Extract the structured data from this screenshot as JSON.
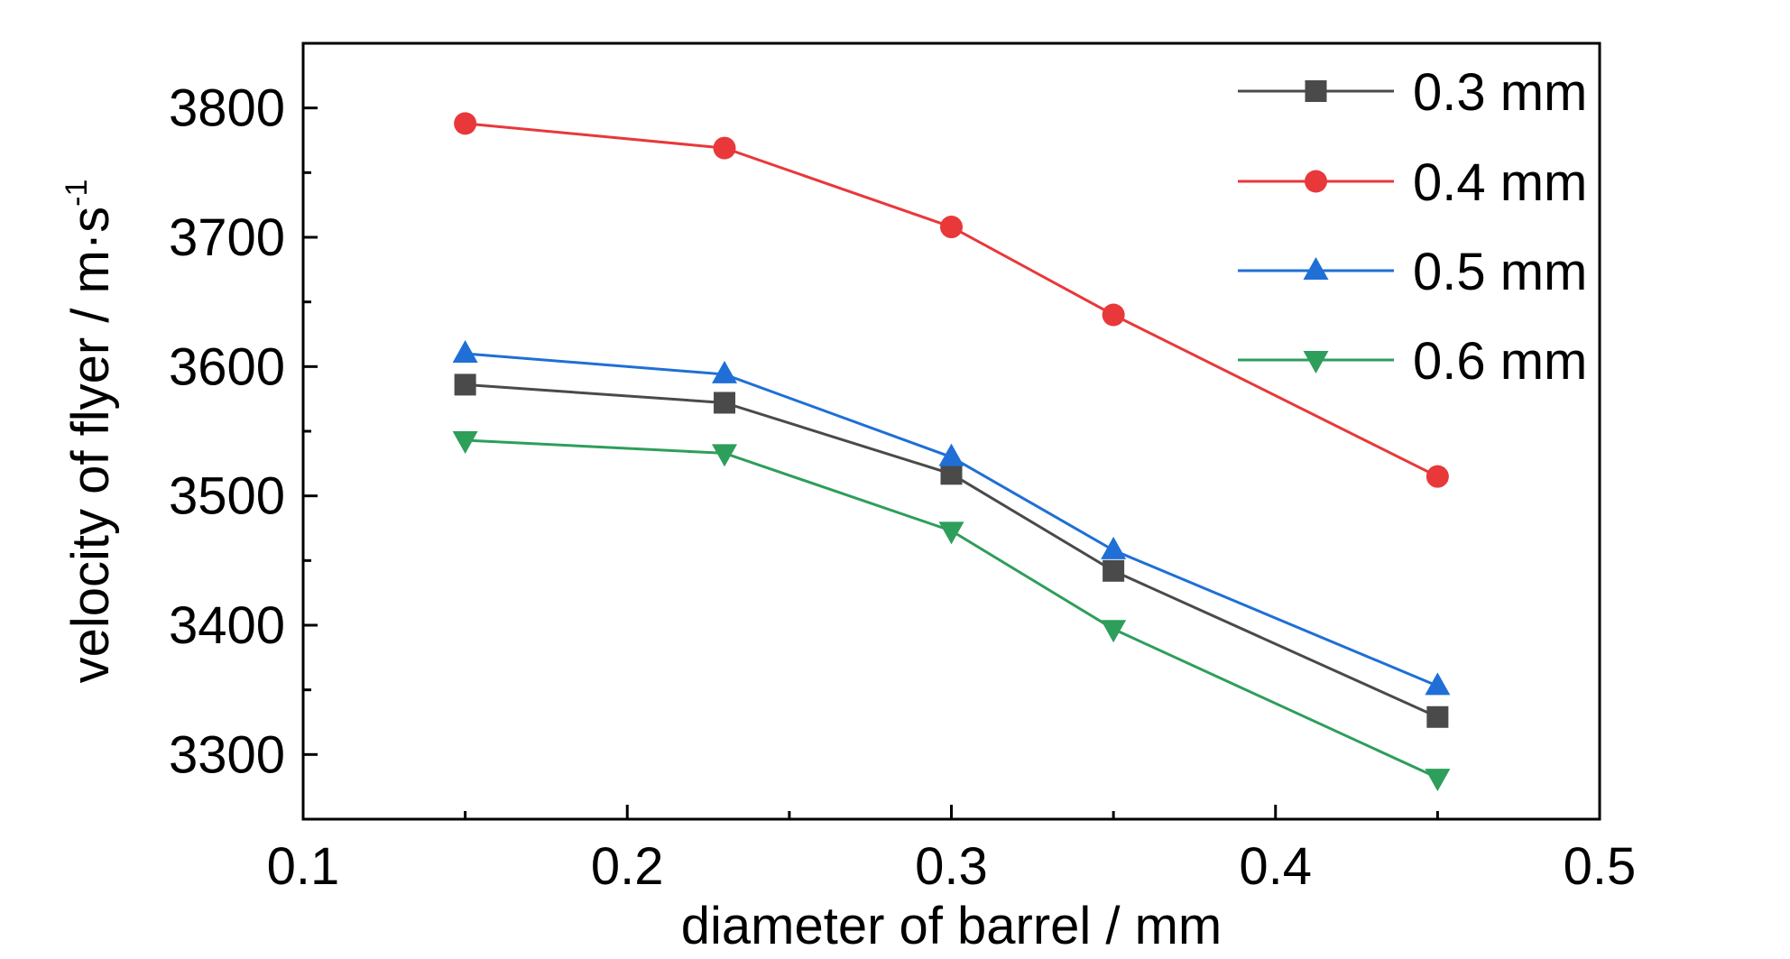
{
  "chart_data": {
    "type": "line",
    "xlabel": "diameter of barrel / mm",
    "ylabel": "velocity of flyer / m·s",
    "ylabel_superscript": "-1",
    "xlim": [
      0.1,
      0.5
    ],
    "ylim": [
      3250,
      3850
    ],
    "xticks": [
      0.1,
      0.2,
      0.3,
      0.4,
      0.5
    ],
    "xtick_labels": [
      "0.1",
      "0.2",
      "0.3",
      "0.4",
      "0.5"
    ],
    "yticks": [
      3300,
      3400,
      3500,
      3600,
      3700,
      3800
    ],
    "ytick_labels": [
      "3300",
      "3400",
      "3500",
      "3600",
      "3700",
      "3800"
    ],
    "grid": false,
    "legend_position": "top-right",
    "x": [
      0.15,
      0.23,
      0.3,
      0.35,
      0.45
    ],
    "series": [
      {
        "name": "0.3 mm",
        "color": "#4a4a4a",
        "marker": "square",
        "values": [
          3586,
          3572,
          3517,
          3442,
          3329
        ]
      },
      {
        "name": "0.4 mm",
        "color": "#e8383a",
        "marker": "circle",
        "values": [
          3788,
          3769,
          3708,
          3640,
          3515
        ]
      },
      {
        "name": "0.5 mm",
        "color": "#1f6fd6",
        "marker": "triangle-up",
        "values": [
          3610,
          3594,
          3530,
          3458,
          3353
        ]
      },
      {
        "name": "0.6 mm",
        "color": "#2e9e5b",
        "marker": "triangle-down",
        "values": [
          3543,
          3533,
          3473,
          3397,
          3282
        ]
      }
    ]
  }
}
